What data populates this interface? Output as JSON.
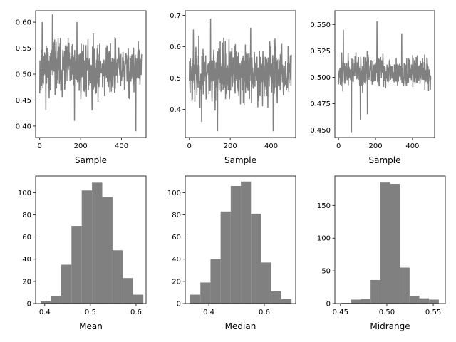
{
  "colors": {
    "series": "#808080",
    "axes": "#000000",
    "background": "#ffffff"
  },
  "chart_data": [
    {
      "type": "line",
      "xlabel": "Sample",
      "xlim": [
        -20,
        520
      ],
      "ylim": [
        0.378,
        0.622
      ],
      "xticks": [
        0,
        200,
        400
      ],
      "xtick_labels": [
        "0",
        "200",
        "400"
      ],
      "yticks": [
        0.4,
        0.45,
        0.5,
        0.55,
        0.6
      ],
      "ytick_labels": [
        "0.40",
        "0.45",
        "0.50",
        "0.55",
        "0.60"
      ],
      "n_points": 500,
      "center": 0.51,
      "spread": 0.032,
      "extremes": [
        [
          12,
          0.6
        ],
        [
          62,
          0.615
        ],
        [
          170,
          0.41
        ],
        [
          256,
          0.43
        ],
        [
          470,
          0.39
        ],
        [
          182,
          0.6
        ]
      ],
      "seed": 11
    },
    {
      "type": "line",
      "xlabel": "Sample",
      "xlim": [
        -20,
        520
      ],
      "ylim": [
        0.31,
        0.715
      ],
      "xticks": [
        0,
        200,
        400
      ],
      "xtick_labels": [
        "0",
        "200",
        "400"
      ],
      "yticks": [
        0.4,
        0.5,
        0.6,
        0.7
      ],
      "ytick_labels": [
        "0.4",
        "0.5",
        "0.6",
        "0.7"
      ],
      "n_points": 500,
      "center": 0.515,
      "spread": 0.055,
      "extremes": [
        [
          20,
          0.655
        ],
        [
          104,
          0.69
        ],
        [
          138,
          0.33
        ],
        [
          300,
          0.66
        ],
        [
          410,
          0.33
        ],
        [
          60,
          0.36
        ]
      ],
      "seed": 23
    },
    {
      "type": "line",
      "xlabel": "Sample",
      "xlim": [
        -20,
        520
      ],
      "ylim": [
        0.443,
        0.563
      ],
      "xticks": [
        0,
        200,
        400
      ],
      "xtick_labels": [
        "0",
        "200",
        "400"
      ],
      "yticks": [
        0.45,
        0.475,
        0.5,
        0.525,
        0.55
      ],
      "ytick_labels": [
        "0.450",
        "0.475",
        "0.500",
        "0.525",
        "0.550"
      ],
      "n_points": 500,
      "center": 0.505,
      "spread": 0.009,
      "extremes": [
        [
          70,
          0.448
        ],
        [
          26,
          0.545
        ],
        [
          208,
          0.553
        ],
        [
          118,
          0.46
        ],
        [
          156,
          0.465
        ],
        [
          342,
          0.541
        ]
      ],
      "seed": 37
    },
    {
      "type": "bar",
      "subtype": "histogram",
      "xlabel": "Mean",
      "xlim": [
        0.38,
        0.622
      ],
      "ylim": [
        0,
        115
      ],
      "xticks": [
        0.4,
        0.5,
        0.6
      ],
      "xtick_labels": [
        "0.4",
        "0.5",
        "0.6"
      ],
      "yticks": [
        0,
        20,
        40,
        60,
        80,
        100
      ],
      "ytick_labels": [
        "0",
        "20",
        "40",
        "60",
        "80",
        "100"
      ],
      "bin_edges": [
        0.391,
        0.4135,
        0.436,
        0.4585,
        0.481,
        0.5035,
        0.526,
        0.5485,
        0.571,
        0.5935,
        0.616
      ],
      "values": [
        2,
        7,
        35,
        70,
        102,
        109,
        96,
        48,
        23,
        8
      ]
    },
    {
      "type": "bar",
      "subtype": "histogram",
      "xlabel": "Median",
      "xlim": [
        0.315,
        0.713
      ],
      "ylim": [
        0,
        115
      ],
      "xticks": [
        0.4,
        0.6
      ],
      "xtick_labels": [
        "0.4",
        "0.6"
      ],
      "yticks": [
        0,
        20,
        40,
        60,
        80,
        100
      ],
      "ytick_labels": [
        "0",
        "20",
        "40",
        "60",
        "80",
        "100"
      ],
      "bin_edges": [
        0.333,
        0.3695,
        0.406,
        0.4425,
        0.479,
        0.5155,
        0.552,
        0.5885,
        0.625,
        0.6615,
        0.698
      ],
      "values": [
        8,
        19,
        40,
        83,
        106,
        110,
        81,
        37,
        11,
        4
      ]
    },
    {
      "type": "bar",
      "subtype": "histogram",
      "xlabel": "Midrange",
      "xlim": [
        0.444,
        0.563
      ],
      "ylim": [
        0,
        195
      ],
      "xticks": [
        0.45,
        0.5,
        0.55
      ],
      "xtick_labels": [
        "0.45",
        "0.50",
        "0.55"
      ],
      "yticks": [
        0,
        50,
        100,
        150
      ],
      "ytick_labels": [
        "0",
        "50",
        "100",
        "150"
      ],
      "bin_edges": [
        0.451,
        0.4615,
        0.472,
        0.4825,
        0.493,
        0.5035,
        0.514,
        0.5245,
        0.535,
        0.5455,
        0.556
      ],
      "values": [
        1,
        6,
        7,
        36,
        185,
        183,
        55,
        12,
        8,
        6
      ]
    }
  ]
}
